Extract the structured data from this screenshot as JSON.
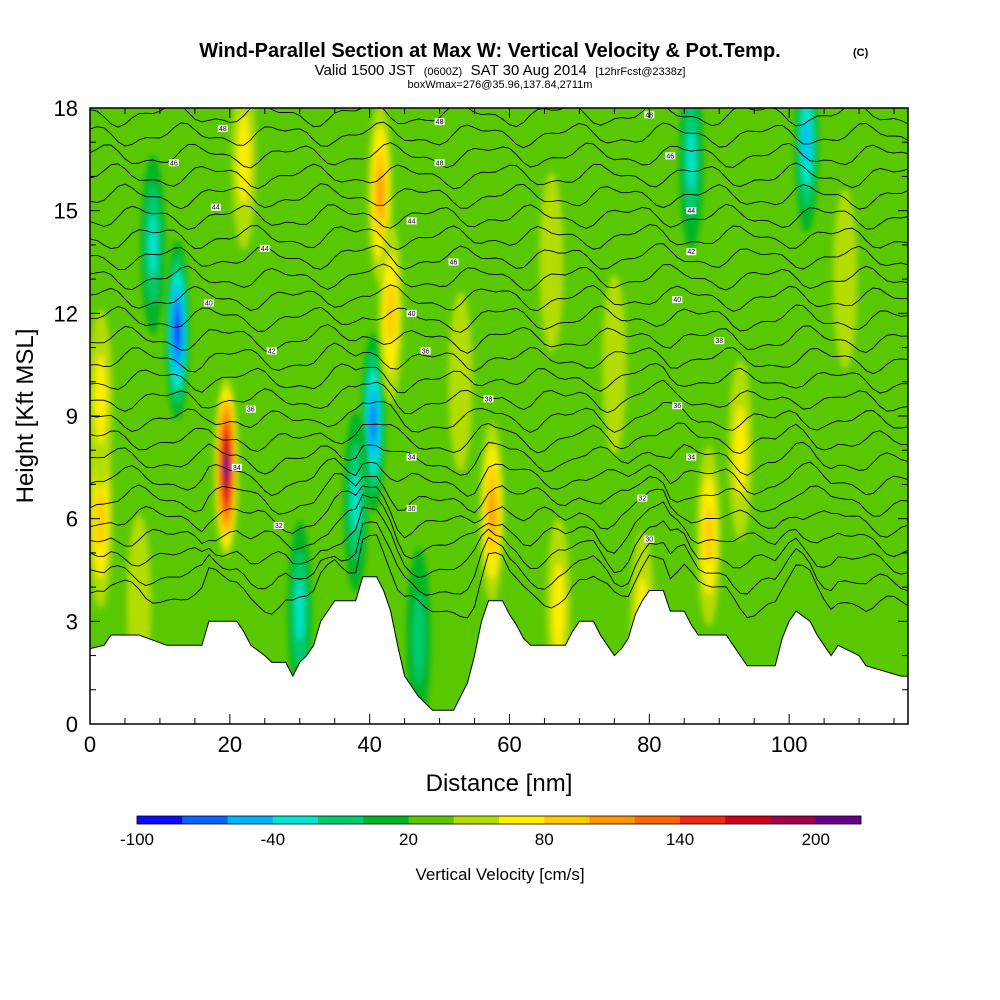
{
  "header": {
    "title": "Wind-Parallel Section at Max W: Vertical Velocity & Pot.Temp.",
    "title_mark": "(C)",
    "subtitle_valid": "Valid 1500 JST",
    "subtitle_zulu": "(0600Z)",
    "subtitle_date": "SAT 30 Aug 2014",
    "subtitle_fcst": "[12hrFcst@2338z]",
    "subtitle_box": "boxWmax=276@35.96,137.84,2711m"
  },
  "colors": {
    "background": "#ffffff",
    "frame": "#000000",
    "contour": "#000000",
    "terrain": "#ffffff"
  },
  "chart_data": {
    "type": "heatmap",
    "xlabel": "Distance [nm]",
    "ylabel": "Height [Kft MSL]",
    "xlim": [
      0,
      117
    ],
    "ylim": [
      0,
      18
    ],
    "x_ticks": [
      0,
      20,
      40,
      60,
      80,
      100
    ],
    "y_ticks": [
      0,
      3,
      6,
      9,
      12,
      15,
      18
    ],
    "grid": false,
    "background_w": 20,
    "colorbar": {
      "label": "Vertical Velocity [cm/s]",
      "tick_labels": [
        -100,
        -40,
        20,
        80,
        140,
        200
      ],
      "levels": [
        -100,
        -80,
        -60,
        -40,
        -20,
        0,
        20,
        40,
        60,
        80,
        100,
        120,
        140,
        160,
        180,
        200,
        220
      ],
      "colors": [
        "#0a0aff",
        "#0a64ff",
        "#00b4ff",
        "#00e6d2",
        "#00cc6e",
        "#00b428",
        "#5ac800",
        "#b4dc00",
        "#ffee00",
        "#ffc800",
        "#ff9600",
        "#ff6400",
        "#f02814",
        "#d2001e",
        "#a00050",
        "#64008c"
      ]
    },
    "w_features": [
      {
        "x": 12.5,
        "z": 11.5,
        "w": -95
      },
      {
        "x": 19.5,
        "z": 7.5,
        "w": 190
      },
      {
        "x": 9,
        "z": 14,
        "w": -40
      },
      {
        "x": 22,
        "z": 16.5,
        "w": 60
      },
      {
        "x": 40.5,
        "z": 8.8,
        "w": -80
      },
      {
        "x": 41.5,
        "z": 15.5,
        "w": 90
      },
      {
        "x": 43,
        "z": 12,
        "w": 70
      },
      {
        "x": 38,
        "z": 6.5,
        "w": -30
      },
      {
        "x": 47,
        "z": 2.5,
        "w": -20
      },
      {
        "x": 57.5,
        "z": 6.2,
        "w": 90
      },
      {
        "x": 88.5,
        "z": 5.5,
        "w": 80
      },
      {
        "x": 93,
        "z": 8,
        "w": 60
      },
      {
        "x": 86,
        "z": 16.5,
        "w": -40
      },
      {
        "x": 102.5,
        "z": 17,
        "w": -60
      },
      {
        "x": 1.5,
        "z": 6,
        "w": 70
      },
      {
        "x": 1.5,
        "z": 9.5,
        "w": 50
      },
      {
        "x": 66,
        "z": 13.5,
        "w": 40
      },
      {
        "x": 75,
        "z": 10.5,
        "w": 40
      },
      {
        "x": 79,
        "z": 3,
        "w": 60
      },
      {
        "x": 67,
        "z": 3.4,
        "w": 50
      },
      {
        "x": 30,
        "z": 3.3,
        "w": -30
      },
      {
        "x": 7,
        "z": 3.5,
        "w": 45
      },
      {
        "x": 108,
        "z": 13,
        "w": 45
      },
      {
        "x": 53,
        "z": 10,
        "w": 45
      }
    ],
    "terrain_height_kft": [
      [
        0,
        2.2
      ],
      [
        2,
        2.3
      ],
      [
        3,
        2.6
      ],
      [
        7,
        2.6
      ],
      [
        11,
        2.3
      ],
      [
        16,
        2.3
      ],
      [
        17,
        3.0
      ],
      [
        21,
        3.0
      ],
      [
        22,
        2.7
      ],
      [
        23,
        2.3
      ],
      [
        25,
        2.0
      ],
      [
        26,
        1.8
      ],
      [
        28,
        1.8
      ],
      [
        29,
        1.4
      ],
      [
        30,
        1.8
      ],
      [
        31,
        2.0
      ],
      [
        32,
        2.3
      ],
      [
        33,
        3.0
      ],
      [
        34,
        3.3
      ],
      [
        35,
        3.6
      ],
      [
        38,
        3.6
      ],
      [
        39,
        4.3
      ],
      [
        41,
        4.3
      ],
      [
        42,
        3.9
      ],
      [
        43,
        3.3
      ],
      [
        44,
        2.3
      ],
      [
        45,
        1.4
      ],
      [
        46,
        1.1
      ],
      [
        47,
        0.8
      ],
      [
        48,
        0.6
      ],
      [
        49,
        0.4
      ],
      [
        52,
        0.4
      ],
      [
        53,
        0.8
      ],
      [
        54,
        1.2
      ],
      [
        55,
        2.0
      ],
      [
        56,
        3.0
      ],
      [
        57,
        3.6
      ],
      [
        59,
        3.6
      ],
      [
        60,
        3.2
      ],
      [
        61,
        2.9
      ],
      [
        62,
        2.5
      ],
      [
        63,
        2.3
      ],
      [
        68,
        2.3
      ],
      [
        69,
        2.7
      ],
      [
        70,
        3.0
      ],
      [
        72,
        3.0
      ],
      [
        73,
        2.6
      ],
      [
        74,
        2.3
      ],
      [
        75,
        2.0
      ],
      [
        76,
        2.2
      ],
      [
        77,
        2.5
      ],
      [
        78,
        3.2
      ],
      [
        79,
        3.6
      ],
      [
        80,
        3.9
      ],
      [
        82,
        3.9
      ],
      [
        83,
        3.3
      ],
      [
        85,
        3.3
      ],
      [
        86,
        2.9
      ],
      [
        87,
        2.6
      ],
      [
        91,
        2.6
      ],
      [
        92,
        2.3
      ],
      [
        94,
        1.7
      ],
      [
        98,
        1.7
      ],
      [
        99,
        2.5
      ],
      [
        100,
        3.0
      ],
      [
        101,
        3.3
      ],
      [
        103,
        3.0
      ],
      [
        104,
        2.6
      ],
      [
        105,
        2.3
      ],
      [
        106,
        2.0
      ],
      [
        107,
        2.3
      ],
      [
        110,
        2.0
      ],
      [
        111,
        1.7
      ],
      [
        116,
        1.4
      ],
      [
        117,
        1.4
      ]
    ],
    "theta_contours_base_kft": [
      3.4,
      4.0,
      4.6,
      5.2,
      5.8,
      6.4,
      7.0,
      7.6,
      8.2,
      8.8,
      9.4,
      10.0,
      10.6,
      11.2,
      11.8,
      12.4,
      13.0,
      13.6,
      14.2,
      14.8,
      15.4,
      16.0,
      16.6,
      17.2,
      17.8
    ],
    "theta_contour_labels": [
      {
        "text": "32",
        "x": 27,
        "z": 5.8
      },
      {
        "text": "34",
        "x": 21,
        "z": 7.5
      },
      {
        "text": "36",
        "x": 23,
        "z": 9.2
      },
      {
        "text": "30",
        "x": 46,
        "z": 6.3
      },
      {
        "text": "34",
        "x": 46,
        "z": 7.8
      },
      {
        "text": "38",
        "x": 57,
        "z": 9.5
      },
      {
        "text": "36",
        "x": 48,
        "z": 10.9
      },
      {
        "text": "40",
        "x": 46,
        "z": 12.0
      },
      {
        "text": "42",
        "x": 26,
        "z": 10.9
      },
      {
        "text": "40",
        "x": 17,
        "z": 12.3
      },
      {
        "text": "44",
        "x": 25,
        "z": 13.9
      },
      {
        "text": "46",
        "x": 52,
        "z": 13.5
      },
      {
        "text": "44",
        "x": 46,
        "z": 14.7
      },
      {
        "text": "44",
        "x": 18,
        "z": 15.1
      },
      {
        "text": "46",
        "x": 12,
        "z": 16.4
      },
      {
        "text": "48",
        "x": 19,
        "z": 17.4
      },
      {
        "text": "48",
        "x": 50,
        "z": 16.4
      },
      {
        "text": "48",
        "x": 50,
        "z": 17.6
      },
      {
        "text": "30",
        "x": 80,
        "z": 5.4
      },
      {
        "text": "32",
        "x": 79,
        "z": 6.6
      },
      {
        "text": "34",
        "x": 86,
        "z": 7.8
      },
      {
        "text": "36",
        "x": 84,
        "z": 9.3
      },
      {
        "text": "38",
        "x": 90,
        "z": 11.2
      },
      {
        "text": "40",
        "x": 84,
        "z": 12.4
      },
      {
        "text": "42",
        "x": 86,
        "z": 13.8
      },
      {
        "text": "44",
        "x": 86,
        "z": 15.0
      },
      {
        "text": "46",
        "x": 83,
        "z": 16.6
      },
      {
        "text": "48",
        "x": 80,
        "z": 17.8
      }
    ]
  }
}
